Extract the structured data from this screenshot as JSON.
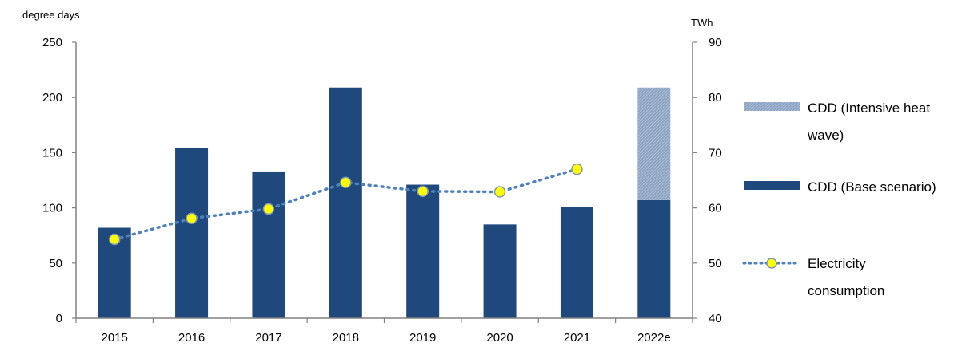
{
  "chart_data": {
    "type": "bar",
    "categories": [
      "2015",
      "2016",
      "2017",
      "2018",
      "2019",
      "2020",
      "2021",
      "2022e"
    ],
    "left_axis_label": "degree days",
    "right_axis_label": "TWh",
    "left_ylim": [
      0,
      250
    ],
    "left_ticks": [
      "0",
      "50",
      "100",
      "150",
      "200",
      "250"
    ],
    "right_ylim": [
      40,
      90
    ],
    "right_ticks": [
      "40",
      "50",
      "60",
      "70",
      "80",
      "90"
    ],
    "grid": false,
    "legend_position": "right",
    "series": [
      {
        "name": "CDD (Base scenario)",
        "kind": "bar",
        "axis": "left",
        "color": "#1f497d",
        "values": [
          82,
          154,
          133,
          209,
          121,
          85,
          101,
          107
        ]
      },
      {
        "name": "CDD (Intensive heat wave)",
        "kind": "stacked-bar",
        "axis": "left",
        "color": "#8ea5c4",
        "values": [
          0,
          0,
          0,
          0,
          0,
          0,
          0,
          102
        ]
      },
      {
        "name": "Electricity consumption",
        "kind": "line",
        "axis": "right",
        "line_color": "#4f81bd",
        "marker_color": "#ffff00",
        "values": [
          54.3,
          58.1,
          59.8,
          64.6,
          63.0,
          62.9,
          67.0,
          null
        ]
      }
    ],
    "legend": [
      {
        "series": 1,
        "lines": [
          "CDD (Intensive heat",
          "wave)"
        ]
      },
      {
        "series": 0,
        "lines": [
          "CDD (Base scenario)"
        ]
      },
      {
        "series": 2,
        "lines": [
          "Electricity",
          "consumption"
        ]
      }
    ]
  }
}
